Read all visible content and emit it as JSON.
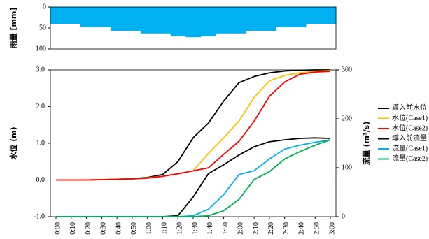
{
  "chart_data": [
    {
      "type": "bar",
      "ylabel": "雨量 [mm]",
      "color": "#00b0f0",
      "inverted": true,
      "values": [
        40,
        40,
        48,
        48,
        57,
        57,
        63,
        63,
        70,
        72,
        70,
        63,
        63,
        57,
        57,
        48,
        48,
        40,
        40
      ],
      "ylim": [
        0,
        100
      ],
      "yticks": [
        0,
        50,
        100
      ]
    },
    {
      "type": "line",
      "ylabel": "水位 (m)",
      "y2label": "流量 (m³/s)",
      "categories": [
        "0:00",
        "0:10",
        "0:20",
        "0:30",
        "0:40",
        "0:50",
        "1:00",
        "1:10",
        "1:20",
        "1:30",
        "1:40",
        "1:50",
        "2:00",
        "2:10",
        "2:20",
        "2:30",
        "2:40",
        "2:50",
        "3:00"
      ],
      "ylim": [
        -1,
        3
      ],
      "yticks": [
        {
          "value": -1,
          "label": "-1.0"
        },
        {
          "value": 0,
          "label": "0.0"
        },
        {
          "value": 1,
          "label": "1.0"
        },
        {
          "value": 2,
          "label": "2.0"
        },
        {
          "value": 3,
          "label": "3.0"
        }
      ],
      "y2lim": [
        0,
        300
      ],
      "y2ticks": [
        0,
        100,
        200,
        300
      ],
      "series": [
        {
          "name": "導入前水位",
          "color": "#000000",
          "values": [
            0,
            0,
            0,
            0.01,
            0.02,
            0.03,
            0.07,
            0.15,
            0.5,
            1.15,
            1.55,
            2.15,
            2.65,
            2.82,
            2.92,
            2.97,
            2.99,
            3.0,
            3.0
          ]
        },
        {
          "name": "水位(Case1)",
          "color": "#ffc000",
          "values": [
            0,
            0,
            0,
            0.01,
            0.02,
            0.03,
            0.06,
            0.1,
            0.17,
            0.25,
            0.72,
            1.15,
            1.6,
            2.25,
            2.7,
            2.85,
            2.92,
            2.96,
            2.98
          ]
        },
        {
          "name": "水位(Case2)",
          "color": "#ff0000",
          "values": [
            0,
            0,
            0,
            0.01,
            0.02,
            0.03,
            0.05,
            0.1,
            0.17,
            0.25,
            0.33,
            0.7,
            1.05,
            1.6,
            2.28,
            2.67,
            2.88,
            2.94,
            2.96
          ]
        },
        {
          "name": "導入前流量",
          "color": "#000000",
          "axis": "y2",
          "values": [
            0,
            0,
            0,
            0,
            0,
            0,
            0,
            0,
            2,
            40,
            88,
            106,
            126,
            143,
            153,
            157,
            160,
            161,
            160
          ]
        },
        {
          "name": "流量(Case1)",
          "color": "#00b0f0",
          "axis": "y2",
          "values": [
            0,
            0,
            0,
            0,
            0,
            0,
            0,
            0,
            0,
            2,
            15,
            45,
            86,
            94,
            118,
            138,
            146,
            152,
            157
          ]
        },
        {
          "name": "流量(Case2)",
          "color": "#00b050",
          "axis": "y2",
          "values": [
            0,
            0,
            0,
            0,
            0,
            0,
            0,
            0,
            0,
            0,
            2,
            12,
            35,
            76,
            92,
            118,
            133,
            146,
            157
          ]
        }
      ]
    }
  ]
}
